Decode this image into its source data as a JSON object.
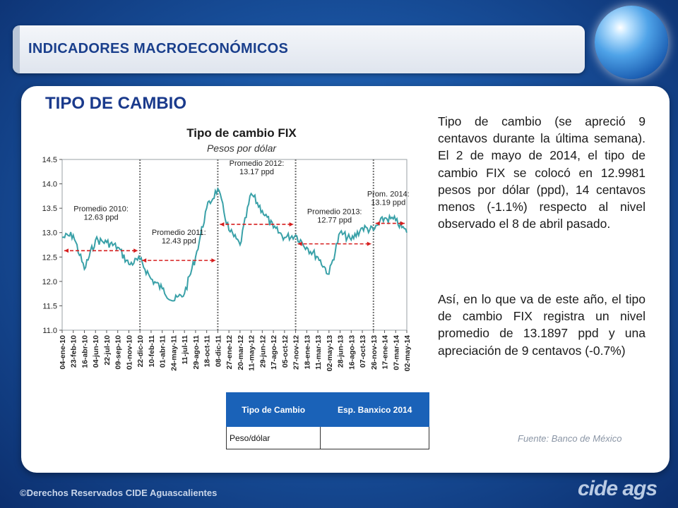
{
  "header": {
    "title": "INDICADORES MACROECONÓMICOS"
  },
  "section": {
    "title": "TIPO DE CAMBIO"
  },
  "text": {
    "paragraph1": "Tipo de cambio (se apreció 9 centavos durante la última semana). El 2 de mayo de 2014, el tipo de cambio FIX se colocó en 12.9981 pesos por dólar (ppd), 14 centavos menos (-1.1%) respecto al nivel observado el 8 de abril pasado.",
    "paragraph2": "Así, en lo que va de este año, el tipo de cambio FIX registra un nivel promedio de 13.1897 ppd y una apreciación de 9 centavos (-0.7%)",
    "source": "Fuente: Banco de México"
  },
  "table": {
    "headers": [
      "Tipo de Cambio",
      "Esp. Banxico 2014"
    ],
    "rows": [
      {
        "label": "Peso/dólar",
        "value": ""
      }
    ]
  },
  "footer": {
    "copyright": "©Derechos Reservados CIDE Aguascalientes",
    "logo": "cide ags"
  },
  "colors": {
    "line": "#3aa1a8",
    "average": "#d61e1e",
    "title": "#1a3a8c"
  },
  "chart_data": {
    "type": "line",
    "title": "Tipo de cambio FIX",
    "subtitle": "Pesos por dólar",
    "ylim": [
      11.0,
      14.5
    ],
    "yticks": [
      "11.0",
      "11.5",
      "12.0",
      "12.5",
      "13.0",
      "13.5",
      "14.0",
      "14.5"
    ],
    "xticks": [
      "04-ene-10",
      "23-feb-10",
      "16-abr-10",
      "04-jun-10",
      "22-jul-10",
      "09-sep-10",
      "01-nov-10",
      "22-dic-10",
      "10-feb-11",
      "01-abr-11",
      "24-may-11",
      "11-jul-11",
      "29-ago-11",
      "18-oct-11",
      "08-dic-11",
      "27-ene-12",
      "20-mar-12",
      "11-may-12",
      "29-jun-12",
      "17-ago-12",
      "05-oct-12",
      "27-nov-12",
      "18-ene-13",
      "11-mar-13",
      "02-may-13",
      "28-jun-13",
      "16-ago-13",
      "07-oct-13",
      "26-nov-13",
      "17-ene-14",
      "07-mar-14",
      "02-may-14"
    ],
    "x_range": [
      "04-ene-10",
      "02-may-14"
    ],
    "series": [
      {
        "values": [
          [
            "04-ene-10",
            12.9
          ],
          [
            "23-feb-10",
            12.95
          ],
          [
            "16-abr-10",
            12.25
          ],
          [
            "04-jun-10",
            12.85
          ],
          [
            "22-jul-10",
            12.8
          ],
          [
            "09-sep-10",
            12.7
          ],
          [
            "01-nov-10",
            12.35
          ],
          [
            "22-dic-10",
            12.45
          ],
          [
            "10-feb-11",
            12.05
          ],
          [
            "01-abr-11",
            11.85
          ],
          [
            "24-may-11",
            11.6
          ],
          [
            "11-jul-11",
            11.75
          ],
          [
            "29-ago-11",
            12.5
          ],
          [
            "18-oct-11",
            13.5
          ],
          [
            "08-dic-11",
            13.9
          ],
          [
            "27-ene-12",
            13.05
          ],
          [
            "20-mar-12",
            12.75
          ],
          [
            "11-may-12",
            13.8
          ],
          [
            "29-jun-12",
            13.45
          ],
          [
            "17-ago-12",
            13.1
          ],
          [
            "05-oct-12",
            12.9
          ],
          [
            "27-nov-12",
            12.95
          ],
          [
            "18-ene-13",
            12.7
          ],
          [
            "11-mar-13",
            12.5
          ],
          [
            "02-may-13",
            12.15
          ],
          [
            "28-jun-13",
            13.0
          ],
          [
            "16-ago-13",
            12.85
          ],
          [
            "07-oct-13",
            13.1
          ],
          [
            "26-nov-13",
            13.05
          ],
          [
            "17-ene-14",
            13.3
          ],
          [
            "07-mar-14",
            13.25
          ],
          [
            "02-may-14",
            13.0
          ]
        ]
      }
    ],
    "dividers": [
      "22-dic-10",
      "08-dic-11",
      "27-nov-12",
      "26-nov-13"
    ],
    "averages": [
      {
        "label": "Promedio 2010:",
        "value_label": "12.63 ppd",
        "value": 12.63,
        "from": "04-ene-10",
        "to": "22-dic-10"
      },
      {
        "label": "Promedio 2011:",
        "value_label": "12.43 ppd",
        "value": 12.43,
        "from": "22-dic-10",
        "to": "08-dic-11"
      },
      {
        "label": "Promedio 2012:",
        "value_label": "13.17 ppd",
        "value": 13.17,
        "from": "08-dic-11",
        "to": "27-nov-12"
      },
      {
        "label": "Promedio 2013:",
        "value_label": "12.77 ppd",
        "value": 12.77,
        "from": "27-nov-12",
        "to": "26-nov-13"
      },
      {
        "label": "Prom. 2014:",
        "value_label": "13.19 ppd",
        "value": 13.19,
        "from": "26-nov-13",
        "to": "02-may-14"
      }
    ],
    "grid": false,
    "legend": "none"
  }
}
